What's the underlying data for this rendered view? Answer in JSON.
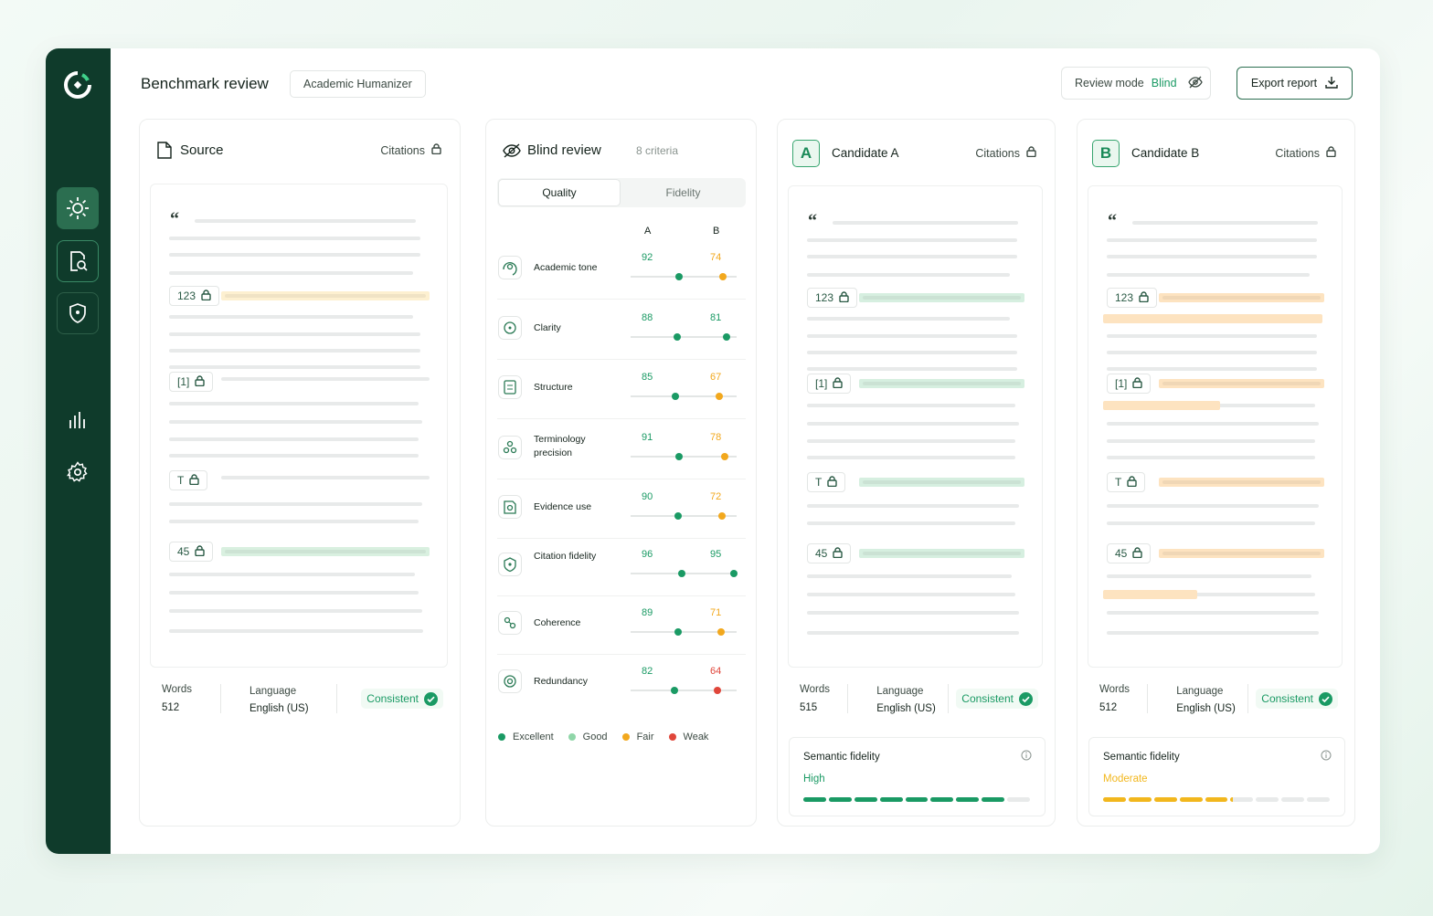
{
  "header": {
    "title": "Benchmark review",
    "project": "Academic Humanizer",
    "review_mode_label": "Review mode",
    "review_mode": "Blind",
    "export": "Export report"
  },
  "source": {
    "title": "Source",
    "lock_label": "Citations",
    "chips": [
      "123",
      "[1]",
      "T",
      "45"
    ],
    "words_label": "Words",
    "words": 512,
    "language_label": "Language",
    "language": "English (US)",
    "status": "Consistent"
  },
  "blind_review": {
    "title": "Blind review",
    "criteria_count": "8 criteria",
    "tabs": [
      "Quality",
      "Fidelity"
    ],
    "columns": [
      "A",
      "B"
    ],
    "criteria": [
      {
        "name": "Academic tone",
        "a": 92,
        "b": 74,
        "a_color": "#1a9a64",
        "b_color": "#f2a81d"
      },
      {
        "name": "Clarity",
        "a": 88,
        "b": 81,
        "a_color": "#1a9a64",
        "b_color": "#1a9a64"
      },
      {
        "name": "Structure",
        "a": 85,
        "b": 67,
        "a_color": "#1a9a64",
        "b_color": "#f2a81d"
      },
      {
        "name": "Terminology precision",
        "a": 91,
        "b": 78,
        "a_color": "#1a9a64",
        "b_color": "#f2a81d"
      },
      {
        "name": "Evidence use",
        "a": 90,
        "b": 72,
        "a_color": "#1a9a64",
        "b_color": "#f2a81d"
      },
      {
        "name": "Citation fidelity",
        "a": 96,
        "b": 95,
        "a_color": "#1a9a64",
        "b_color": "#1a9a64"
      },
      {
        "name": "Coherence",
        "a": 89,
        "b": 71,
        "a_color": "#1a9a64",
        "b_color": "#f2a81d"
      },
      {
        "name": "Redundancy",
        "a": 82,
        "b": 64,
        "a_color": "#1a9a64",
        "b_color": "#e0463a"
      }
    ],
    "legend": [
      {
        "label": "Excellent",
        "color": "#1a9a64"
      },
      {
        "label": "Good",
        "color": "#8fd6a8"
      },
      {
        "label": "Fair",
        "color": "#f2a81d"
      },
      {
        "label": "Weak",
        "color": "#e0463a"
      }
    ]
  },
  "candidates": [
    {
      "badge": "A",
      "title": "Candidate A",
      "lock_label": "Citations",
      "chips": [
        "123",
        "[1]",
        "T",
        "45"
      ],
      "highlight_color": "#d6efe0",
      "words_label": "Words",
      "words": 515,
      "language_label": "Language",
      "language": "English (US)",
      "status": "Consistent",
      "fidelity_label": "Semantic fidelity",
      "fidelity": "High",
      "fidelity_color": "#1a9a64",
      "fidelity_filled": 8,
      "fidelity_segments": 9
    },
    {
      "badge": "B",
      "title": "Candidate B",
      "lock_label": "Citations",
      "chips": [
        "123",
        "[1]",
        "T",
        "45"
      ],
      "highlight_color": "#fde3c0",
      "words_label": "Words",
      "words": 512,
      "language_label": "Language",
      "language": "English (US)",
      "status": "Consistent",
      "fidelity_label": "Semantic fidelity",
      "fidelity": "Moderate",
      "fidelity_color": "#f2b71d",
      "fidelity_filled": 5.1,
      "fidelity_segments": 9
    }
  ]
}
